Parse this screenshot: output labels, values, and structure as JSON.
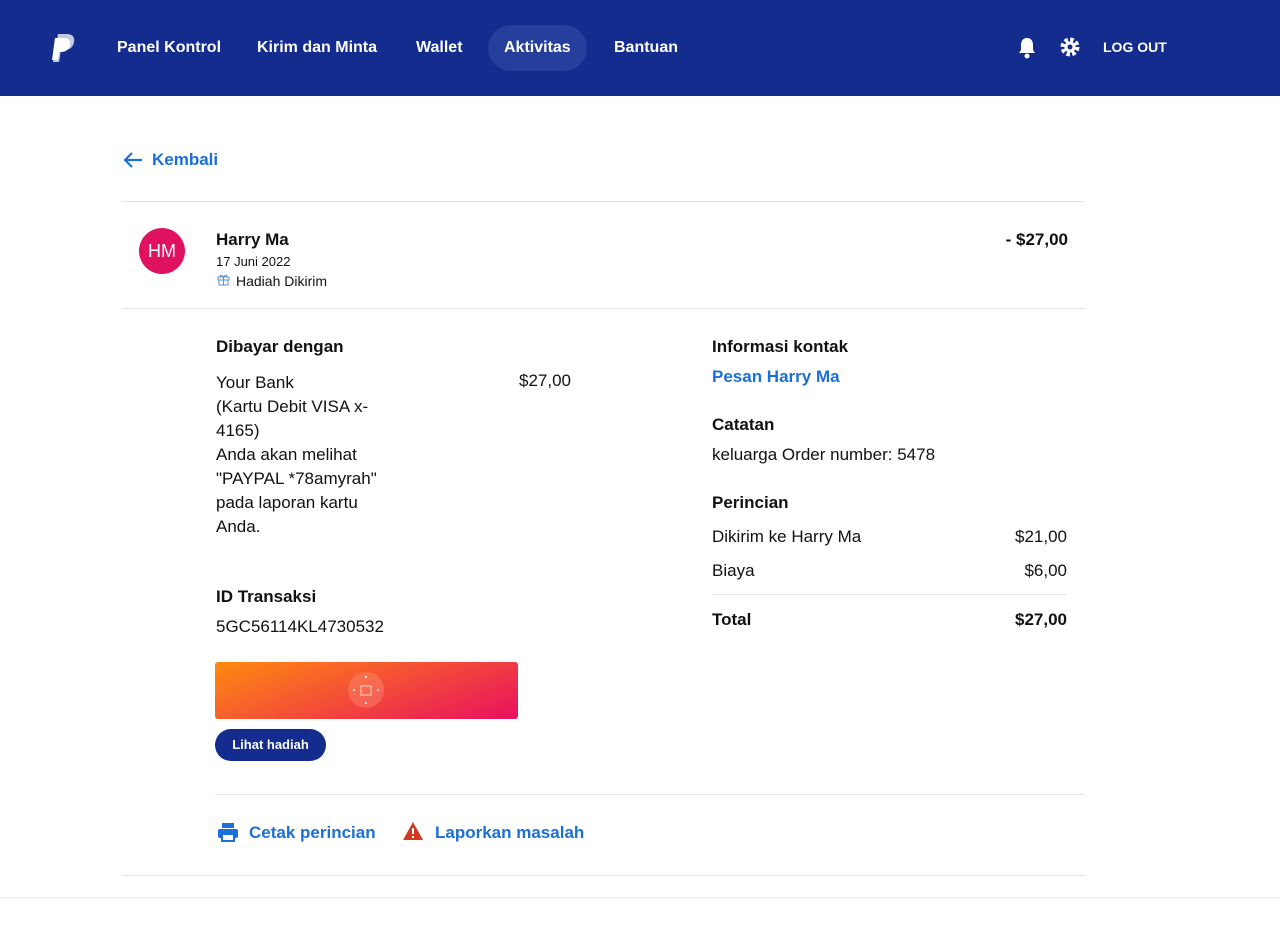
{
  "nav": {
    "items": [
      "Panel Kontrol",
      "Kirim dan Minta",
      "Wallet",
      "Aktivitas",
      "Bantuan"
    ],
    "active": 3,
    "logout": "LOG OUT"
  },
  "back": "Kembali",
  "transaction": {
    "initials": "HM",
    "name": "Harry Ma",
    "date": "17 Juni 2022",
    "type": "Hadiah Dikirim",
    "amount": "- $27,00"
  },
  "paid_with": {
    "heading": "Dibayar dengan",
    "lines": [
      "Your Bank",
      "(Kartu Debit VISA x-4165)",
      "Anda akan melihat \"PAYPAL *78amyrah\" pada laporan kartu Anda."
    ],
    "amount": "$27,00"
  },
  "transaction_id": {
    "heading": "ID Transaksi",
    "value": "5GC56114KL4730532"
  },
  "gift_button": "Lihat hadiah",
  "contact": {
    "heading": "Informasi kontak",
    "link": "Pesan Harry Ma"
  },
  "notes": {
    "heading": "Catatan",
    "text": "keluarga Order number: 5478"
  },
  "details": {
    "heading": "Perincian",
    "rows": [
      [
        "Dikirim ke Harry Ma",
        "$21,00"
      ],
      [
        "Biaya",
        "$6,00"
      ]
    ],
    "total": [
      "Total",
      "$27,00"
    ]
  },
  "actions": [
    "Cetak perincian",
    "Laporkan masalah"
  ]
}
